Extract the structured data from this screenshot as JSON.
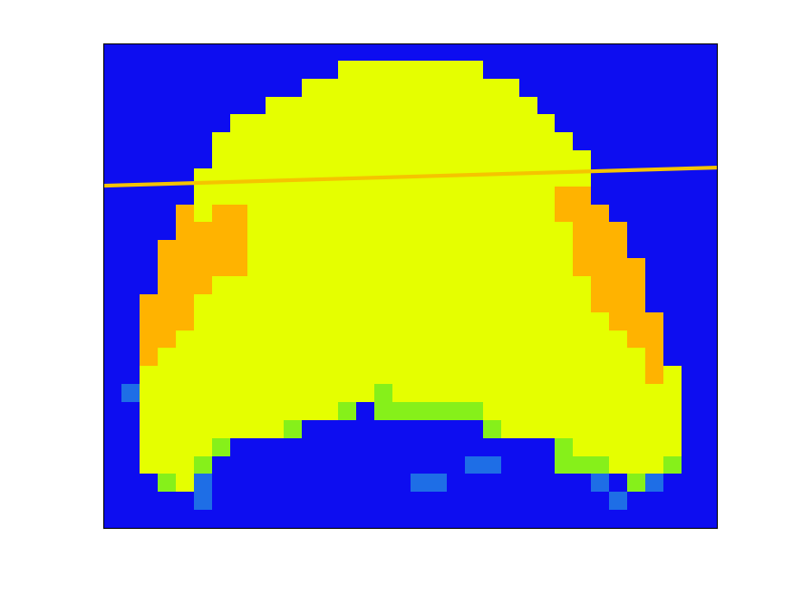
{
  "chart_data": {
    "type": "heatmap",
    "cells": [
      [
        0,
        0,
        0,
        0,
        0,
        0,
        0,
        0,
        0,
        0,
        0,
        0,
        0,
        0,
        0,
        0,
        0,
        0,
        0,
        0,
        0,
        0,
        0,
        0,
        0,
        0,
        0,
        0,
        0,
        0,
        0,
        0,
        0,
        0
      ],
      [
        0,
        0,
        0,
        0,
        0,
        0,
        0,
        0,
        0,
        0,
        0,
        0,
        0,
        3,
        3,
        3,
        3,
        3,
        3,
        3,
        3,
        0,
        0,
        0,
        0,
        0,
        0,
        0,
        0,
        0,
        0,
        0,
        0,
        0
      ],
      [
        0,
        0,
        0,
        0,
        0,
        0,
        0,
        0,
        0,
        0,
        0,
        3,
        3,
        3,
        3,
        3,
        3,
        3,
        3,
        3,
        3,
        3,
        3,
        0,
        0,
        0,
        0,
        0,
        0,
        0,
        0,
        0,
        0,
        0
      ],
      [
        0,
        0,
        0,
        0,
        0,
        0,
        0,
        0,
        0,
        3,
        3,
        3,
        3,
        3,
        3,
        3,
        3,
        3,
        3,
        3,
        3,
        3,
        3,
        3,
        0,
        0,
        0,
        0,
        0,
        0,
        0,
        0,
        0,
        0
      ],
      [
        0,
        0,
        0,
        0,
        0,
        0,
        0,
        3,
        3,
        3,
        3,
        3,
        3,
        3,
        3,
        3,
        3,
        3,
        3,
        3,
        3,
        3,
        3,
        3,
        3,
        0,
        0,
        0,
        0,
        0,
        0,
        0,
        0,
        0
      ],
      [
        0,
        0,
        0,
        0,
        0,
        0,
        3,
        3,
        3,
        3,
        3,
        3,
        3,
        3,
        3,
        3,
        3,
        3,
        3,
        3,
        3,
        3,
        3,
        3,
        3,
        3,
        0,
        0,
        0,
        0,
        0,
        0,
        0,
        0
      ],
      [
        0,
        0,
        0,
        0,
        0,
        0,
        3,
        3,
        3,
        3,
        3,
        3,
        3,
        3,
        3,
        3,
        3,
        3,
        3,
        3,
        3,
        3,
        3,
        3,
        3,
        3,
        3,
        0,
        0,
        0,
        0,
        0,
        0,
        0
      ],
      [
        0,
        0,
        0,
        0,
        0,
        3,
        3,
        3,
        3,
        3,
        3,
        3,
        3,
        3,
        3,
        3,
        3,
        3,
        3,
        3,
        3,
        3,
        3,
        3,
        3,
        3,
        3,
        0,
        0,
        0,
        0,
        0,
        0,
        0
      ],
      [
        0,
        0,
        0,
        0,
        0,
        3,
        3,
        3,
        3,
        3,
        3,
        3,
        3,
        3,
        3,
        3,
        3,
        3,
        3,
        3,
        3,
        3,
        3,
        3,
        3,
        4,
        4,
        0,
        0,
        0,
        0,
        0,
        0,
        0
      ],
      [
        0,
        0,
        0,
        0,
        4,
        3,
        4,
        4,
        3,
        3,
        3,
        3,
        3,
        3,
        3,
        3,
        3,
        3,
        3,
        3,
        3,
        3,
        3,
        3,
        3,
        4,
        4,
        4,
        0,
        0,
        0,
        0,
        0,
        0
      ],
      [
        0,
        0,
        0,
        0,
        4,
        4,
        4,
        4,
        3,
        3,
        3,
        3,
        3,
        3,
        3,
        3,
        3,
        3,
        3,
        3,
        3,
        3,
        3,
        3,
        3,
        3,
        4,
        4,
        4,
        0,
        0,
        0,
        0,
        0
      ],
      [
        0,
        0,
        0,
        4,
        4,
        4,
        4,
        4,
        3,
        3,
        3,
        3,
        3,
        3,
        3,
        3,
        3,
        3,
        3,
        3,
        3,
        3,
        3,
        3,
        3,
        3,
        4,
        4,
        4,
        0,
        0,
        0,
        0,
        0
      ],
      [
        0,
        0,
        0,
        4,
        4,
        4,
        4,
        4,
        3,
        3,
        3,
        3,
        3,
        3,
        3,
        3,
        3,
        3,
        3,
        3,
        3,
        3,
        3,
        3,
        3,
        3,
        4,
        4,
        4,
        4,
        0,
        0,
        0,
        0
      ],
      [
        0,
        0,
        0,
        4,
        4,
        4,
        3,
        3,
        3,
        3,
        3,
        3,
        3,
        3,
        3,
        3,
        3,
        3,
        3,
        3,
        3,
        3,
        3,
        3,
        3,
        3,
        3,
        4,
        4,
        4,
        0,
        0,
        0,
        0
      ],
      [
        0,
        0,
        4,
        4,
        4,
        3,
        3,
        3,
        3,
        3,
        3,
        3,
        3,
        3,
        3,
        3,
        3,
        3,
        3,
        3,
        3,
        3,
        3,
        3,
        3,
        3,
        3,
        4,
        4,
        4,
        0,
        0,
        0,
        0
      ],
      [
        0,
        0,
        4,
        4,
        4,
        3,
        3,
        3,
        3,
        3,
        3,
        3,
        3,
        3,
        3,
        3,
        3,
        3,
        3,
        3,
        3,
        3,
        3,
        3,
        3,
        3,
        3,
        3,
        4,
        4,
        4,
        0,
        0,
        0
      ],
      [
        0,
        0,
        4,
        4,
        3,
        3,
        3,
        3,
        3,
        3,
        3,
        3,
        3,
        3,
        3,
        3,
        3,
        3,
        3,
        3,
        3,
        3,
        3,
        3,
        3,
        3,
        3,
        3,
        3,
        4,
        4,
        0,
        0,
        0
      ],
      [
        0,
        0,
        4,
        3,
        3,
        3,
        3,
        3,
        3,
        3,
        3,
        3,
        3,
        3,
        3,
        3,
        3,
        3,
        3,
        3,
        3,
        3,
        3,
        3,
        3,
        3,
        3,
        3,
        3,
        3,
        4,
        0,
        0,
        0
      ],
      [
        0,
        0,
        3,
        3,
        3,
        3,
        3,
        3,
        3,
        3,
        3,
        3,
        3,
        3,
        3,
        3,
        3,
        3,
        3,
        3,
        3,
        3,
        3,
        3,
        3,
        3,
        3,
        3,
        3,
        3,
        4,
        3,
        0,
        0
      ],
      [
        0,
        1,
        3,
        3,
        3,
        3,
        3,
        3,
        3,
        3,
        3,
        3,
        3,
        3,
        3,
        2,
        3,
        3,
        3,
        3,
        3,
        3,
        3,
        3,
        3,
        3,
        3,
        3,
        3,
        3,
        3,
        3,
        0,
        0
      ],
      [
        0,
        0,
        3,
        3,
        3,
        3,
        3,
        3,
        3,
        3,
        3,
        3,
        3,
        2,
        0,
        2,
        2,
        2,
        2,
        2,
        2,
        3,
        3,
        3,
        3,
        3,
        3,
        3,
        3,
        3,
        3,
        3,
        0,
        0
      ],
      [
        0,
        0,
        3,
        3,
        3,
        3,
        3,
        3,
        3,
        3,
        2,
        0,
        0,
        0,
        0,
        0,
        0,
        0,
        0,
        0,
        0,
        2,
        3,
        3,
        3,
        3,
        3,
        3,
        3,
        3,
        3,
        3,
        0,
        0
      ],
      [
        0,
        0,
        3,
        3,
        3,
        3,
        2,
        0,
        0,
        0,
        0,
        0,
        0,
        0,
        0,
        0,
        0,
        0,
        0,
        0,
        0,
        0,
        0,
        0,
        0,
        2,
        3,
        3,
        3,
        3,
        3,
        3,
        0,
        0
      ],
      [
        0,
        0,
        3,
        3,
        3,
        2,
        0,
        0,
        0,
        0,
        0,
        0,
        0,
        0,
        0,
        0,
        0,
        0,
        0,
        0,
        1,
        1,
        0,
        0,
        0,
        2,
        2,
        2,
        3,
        3,
        3,
        2,
        0,
        0
      ],
      [
        0,
        0,
        0,
        2,
        3,
        1,
        0,
        0,
        0,
        0,
        0,
        0,
        0,
        0,
        0,
        0,
        0,
        1,
        1,
        0,
        0,
        0,
        0,
        0,
        0,
        0,
        0,
        1,
        0,
        2,
        1,
        0,
        0,
        0
      ],
      [
        0,
        0,
        0,
        0,
        0,
        1,
        0,
        0,
        0,
        0,
        0,
        0,
        0,
        0,
        0,
        0,
        0,
        0,
        0,
        0,
        0,
        0,
        0,
        0,
        0,
        0,
        0,
        0,
        1,
        0,
        0,
        0,
        0,
        0
      ],
      [
        0,
        0,
        0,
        0,
        0,
        0,
        0,
        0,
        0,
        0,
        0,
        0,
        0,
        0,
        0,
        0,
        0,
        0,
        0,
        0,
        0,
        0,
        0,
        0,
        0,
        0,
        0,
        0,
        0,
        0,
        0,
        0,
        0,
        0
      ]
    ],
    "colors": [
      "#0d0df0",
      "#1e6ee6",
      "#86f01a",
      "#e5ff00",
      "#ffb300"
    ],
    "xlim": [
      0,
      34
    ],
    "ylim": [
      27,
      0
    ],
    "tick_labels": false,
    "series": [
      {
        "type": "line",
        "x": [
          0,
          34
        ],
        "values": [
          7.93,
          6.92
        ],
        "color": "#f5c400"
      }
    ]
  }
}
